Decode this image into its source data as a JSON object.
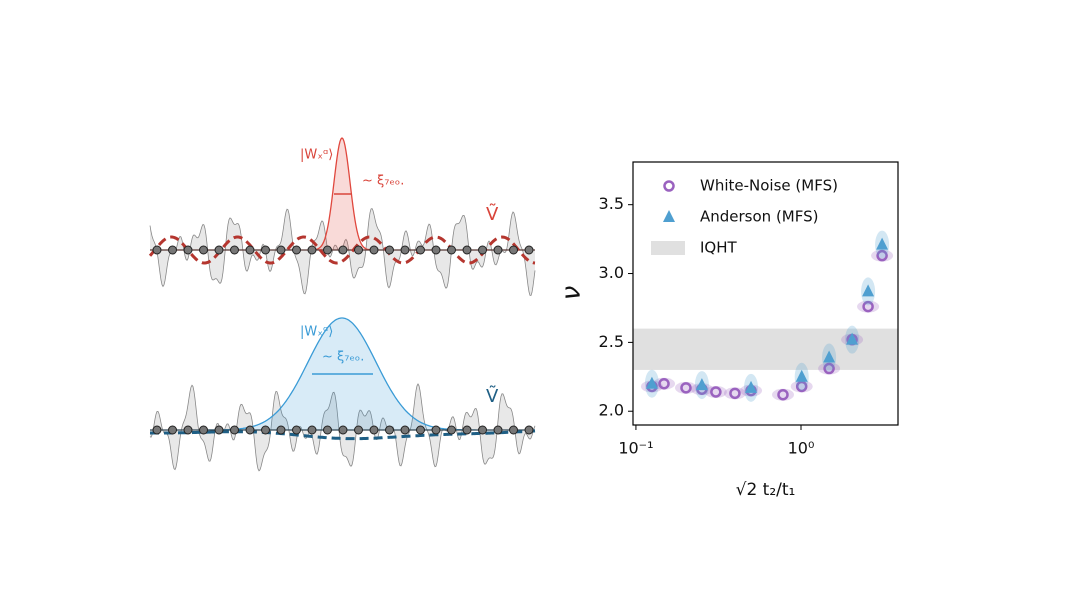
{
  "illustration": {
    "top": {
      "state_label": "|Wₓᵅ⟩",
      "width_label": "~ ξ₇ₑₒ.",
      "potential_label": "Ṽ"
    },
    "bottom": {
      "state_label": "|Wₓᵅ⟩",
      "width_label": "~ ξ₇ₑₒ.",
      "potential_label": "Ṽ"
    }
  },
  "chart_data": {
    "type": "scatter",
    "xlabel": "√2 t₂/t₁",
    "ylabel": "ν",
    "xscale": "log",
    "xlim": [
      0.096,
      3.87
    ],
    "ylim": [
      1.9,
      3.81
    ],
    "xticks": [
      {
        "value": 0.1,
        "label": "10⁻¹"
      },
      {
        "value": 1,
        "label": "10⁰"
      }
    ],
    "yticks": [
      {
        "value": 2.0,
        "label": "2.0"
      },
      {
        "value": 2.5,
        "label": "2.5"
      },
      {
        "value": 3.0,
        "label": "3.0"
      },
      {
        "value": 3.5,
        "label": "3.5"
      }
    ],
    "legend": "upper left",
    "band": {
      "name": "IQHT",
      "range": [
        2.3,
        2.6
      ],
      "color": "#e0e0e0"
    },
    "series": [
      {
        "name": "White-Noise (MFS)",
        "color": "#9a62bf",
        "marker": "circle",
        "x": [
          0.125,
          0.148,
          0.201,
          0.251,
          0.305,
          0.398,
          0.498,
          0.778,
          1.01,
          1.48,
          2.04,
          2.55,
          3.1
        ],
        "values": [
          2.18,
          2.2,
          2.17,
          2.16,
          2.14,
          2.13,
          2.15,
          2.12,
          2.18,
          2.31,
          2.52,
          2.76,
          3.13
        ]
      },
      {
        "name": "Anderson (MFS)",
        "color": "#4f9fd0",
        "marker": "triangle",
        "x": [
          0.125,
          0.251,
          0.498,
          1.01,
          1.48,
          2.04,
          2.55,
          3.1
        ],
        "values": [
          2.2,
          2.19,
          2.17,
          2.25,
          2.39,
          2.52,
          2.87,
          3.21
        ]
      }
    ]
  }
}
